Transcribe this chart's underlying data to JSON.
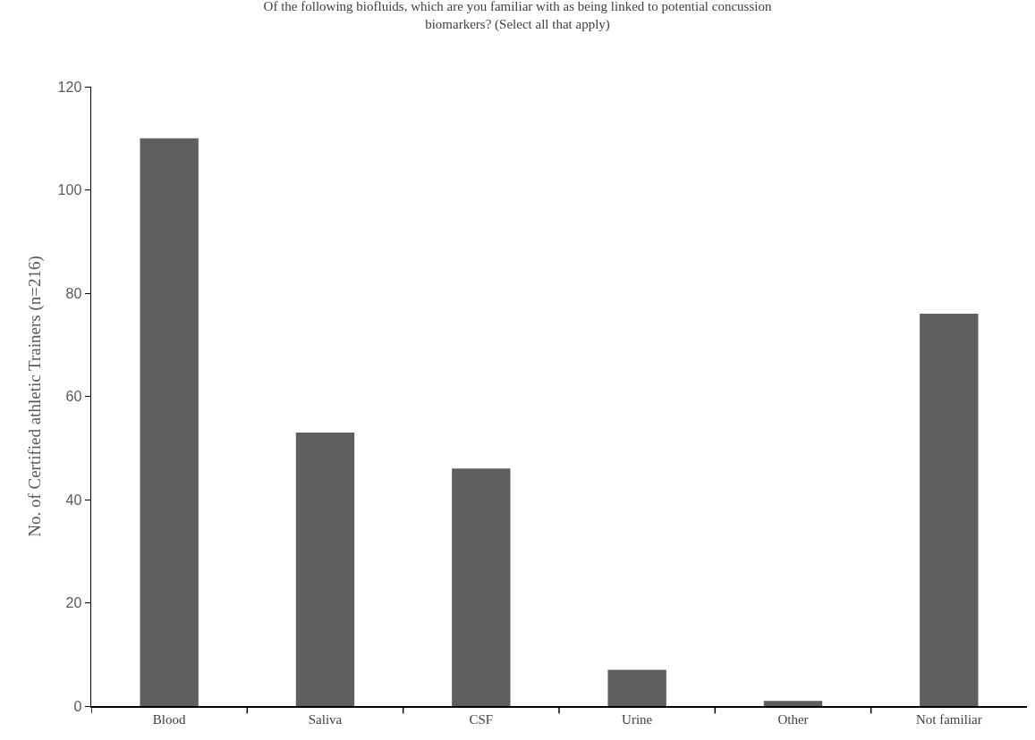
{
  "chart_data": {
    "type": "bar",
    "title": "Of the following biofluids, which are you familiar with as being linked to potential concussion biomarkers? (Select all that apply)",
    "ylabel": "No. of Certified athletic Trainers (n=216)",
    "categories": [
      "Blood",
      "Saliva",
      "CSF",
      "Urine",
      "Other",
      "Not familiar"
    ],
    "values": [
      110,
      53,
      46,
      7,
      1,
      76
    ],
    "color": "#5f5f5f",
    "ylim": [
      0,
      120
    ],
    "yticks": [
      0,
      20,
      40,
      60,
      80,
      100,
      120
    ],
    "grid": false
  }
}
